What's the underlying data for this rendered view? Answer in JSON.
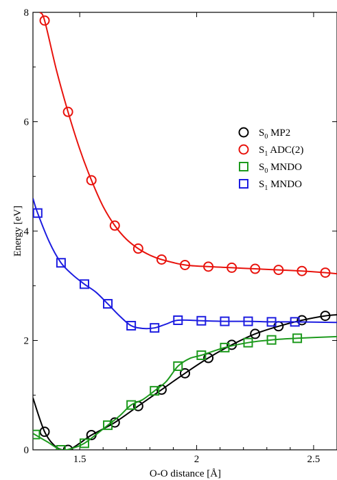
{
  "chart_data": {
    "type": "line",
    "title": "",
    "xlabel": "O-O distance [Å]",
    "ylabel": "Energy [eV]",
    "xlim": [
      1.3,
      2.6
    ],
    "ylim": [
      0,
      8
    ],
    "xticks": [
      {
        "value": 1.5,
        "label": "1.5"
      },
      {
        "value": 2.0,
        "label": "2"
      },
      {
        "value": 2.5,
        "label": "2.5"
      }
    ],
    "yticks": [
      {
        "value": 0,
        "label": "0"
      },
      {
        "value": 2,
        "label": "2"
      },
      {
        "value": 4,
        "label": "4"
      },
      {
        "value": 6,
        "label": "6"
      },
      {
        "value": 8,
        "label": "8"
      }
    ],
    "legend_position": "right",
    "series": [
      {
        "id": "s0-mp2",
        "name": "S0 MP2",
        "legend_main": "S",
        "legend_sub": "0",
        "legend_rest": " MP2",
        "color": "#000000",
        "marker": "circle",
        "points": [
          [
            1.35,
            0.33
          ],
          [
            1.45,
            0.0
          ],
          [
            1.55,
            0.27
          ],
          [
            1.65,
            0.5
          ],
          [
            1.75,
            0.8
          ],
          [
            1.85,
            1.1
          ],
          [
            1.95,
            1.4
          ],
          [
            2.05,
            1.68
          ],
          [
            2.15,
            1.92
          ],
          [
            2.25,
            2.12
          ],
          [
            2.35,
            2.26
          ],
          [
            2.45,
            2.37
          ],
          [
            2.55,
            2.45
          ]
        ],
        "curve": [
          [
            1.3,
            0.95
          ],
          [
            1.35,
            0.33
          ],
          [
            1.4,
            0.05
          ],
          [
            1.45,
            0.0
          ],
          [
            1.5,
            0.12
          ],
          [
            1.55,
            0.27
          ],
          [
            1.65,
            0.5
          ],
          [
            1.75,
            0.8
          ],
          [
            1.85,
            1.1
          ],
          [
            1.95,
            1.4
          ],
          [
            2.05,
            1.68
          ],
          [
            2.15,
            1.92
          ],
          [
            2.25,
            2.12
          ],
          [
            2.35,
            2.26
          ],
          [
            2.45,
            2.37
          ],
          [
            2.55,
            2.45
          ],
          [
            2.6,
            2.47
          ]
        ]
      },
      {
        "id": "s1-adc2",
        "name": "S1 ADC(2)",
        "legend_main": "S",
        "legend_sub": "1",
        "legend_rest": " ADC(2)",
        "color": "#e8120c",
        "marker": "circle",
        "points": [
          [
            1.35,
            7.85
          ],
          [
            1.45,
            6.18
          ],
          [
            1.55,
            4.93
          ],
          [
            1.65,
            4.1
          ],
          [
            1.75,
            3.68
          ],
          [
            1.85,
            3.48
          ],
          [
            1.95,
            3.38
          ],
          [
            2.05,
            3.35
          ],
          [
            2.15,
            3.33
          ],
          [
            2.25,
            3.31
          ],
          [
            2.35,
            3.29
          ],
          [
            2.45,
            3.27
          ],
          [
            2.55,
            3.24
          ]
        ],
        "curve": [
          [
            1.33,
            8.0
          ],
          [
            1.35,
            7.85
          ],
          [
            1.4,
            6.95
          ],
          [
            1.45,
            6.18
          ],
          [
            1.5,
            5.5
          ],
          [
            1.55,
            4.93
          ],
          [
            1.6,
            4.45
          ],
          [
            1.65,
            4.1
          ],
          [
            1.7,
            3.85
          ],
          [
            1.75,
            3.68
          ],
          [
            1.8,
            3.56
          ],
          [
            1.85,
            3.48
          ],
          [
            1.95,
            3.38
          ],
          [
            2.05,
            3.35
          ],
          [
            2.15,
            3.33
          ],
          [
            2.25,
            3.31
          ],
          [
            2.35,
            3.29
          ],
          [
            2.45,
            3.27
          ],
          [
            2.55,
            3.24
          ],
          [
            2.6,
            3.22
          ]
        ]
      },
      {
        "id": "s0-mndo",
        "name": "S0 MNDO",
        "legend_main": "S",
        "legend_sub": "0",
        "legend_rest": " MNDO",
        "color": "#1d9a1d",
        "marker": "square",
        "points": [
          [
            1.31,
            0.28
          ],
          [
            1.42,
            0.0
          ],
          [
            1.52,
            0.12
          ],
          [
            1.62,
            0.45
          ],
          [
            1.72,
            0.82
          ],
          [
            1.82,
            1.08
          ],
          [
            1.92,
            1.53
          ],
          [
            2.02,
            1.73
          ],
          [
            2.12,
            1.87
          ],
          [
            2.22,
            1.96
          ],
          [
            2.32,
            2.01
          ],
          [
            2.43,
            2.04
          ]
        ],
        "curve": [
          [
            1.3,
            0.3
          ],
          [
            1.36,
            0.15
          ],
          [
            1.42,
            0.0
          ],
          [
            1.47,
            0.03
          ],
          [
            1.52,
            0.12
          ],
          [
            1.57,
            0.28
          ],
          [
            1.62,
            0.45
          ],
          [
            1.67,
            0.62
          ],
          [
            1.72,
            0.82
          ],
          [
            1.77,
            0.92
          ],
          [
            1.82,
            1.08
          ],
          [
            1.87,
            1.25
          ],
          [
            1.92,
            1.53
          ],
          [
            1.97,
            1.67
          ],
          [
            2.02,
            1.73
          ],
          [
            2.12,
            1.87
          ],
          [
            2.22,
            1.96
          ],
          [
            2.32,
            2.01
          ],
          [
            2.43,
            2.04
          ],
          [
            2.6,
            2.07
          ]
        ]
      },
      {
        "id": "s1-mndo",
        "name": "S1 MNDO",
        "legend_main": "S",
        "legend_sub": "1",
        "legend_rest": " MNDO",
        "color": "#1c1ce0",
        "marker": "square",
        "points": [
          [
            1.32,
            4.33
          ],
          [
            1.42,
            3.42
          ],
          [
            1.52,
            3.03
          ],
          [
            1.62,
            2.67
          ],
          [
            1.72,
            2.27
          ],
          [
            1.82,
            2.23
          ],
          [
            1.92,
            2.37
          ],
          [
            2.02,
            2.36
          ],
          [
            2.12,
            2.35
          ],
          [
            2.22,
            2.35
          ],
          [
            2.32,
            2.34
          ],
          [
            2.42,
            2.34
          ]
        ],
        "curve": [
          [
            1.3,
            4.6
          ],
          [
            1.32,
            4.33
          ],
          [
            1.37,
            3.8
          ],
          [
            1.42,
            3.42
          ],
          [
            1.47,
            3.2
          ],
          [
            1.52,
            3.03
          ],
          [
            1.57,
            2.88
          ],
          [
            1.62,
            2.67
          ],
          [
            1.67,
            2.45
          ],
          [
            1.72,
            2.27
          ],
          [
            1.77,
            2.22
          ],
          [
            1.82,
            2.23
          ],
          [
            1.87,
            2.3
          ],
          [
            1.92,
            2.37
          ],
          [
            2.02,
            2.36
          ],
          [
            2.12,
            2.35
          ],
          [
            2.22,
            2.35
          ],
          [
            2.32,
            2.34
          ],
          [
            2.42,
            2.34
          ],
          [
            2.6,
            2.33
          ]
        ]
      }
    ]
  }
}
